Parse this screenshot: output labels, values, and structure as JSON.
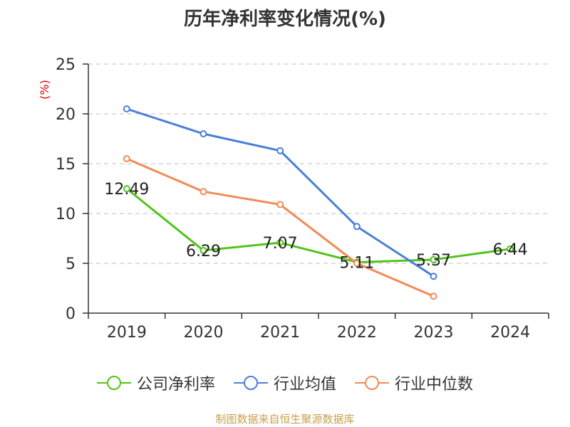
{
  "chart_data": {
    "type": "line",
    "title": "历年净利率变化情况(%)",
    "ylabel": "(%)",
    "xlabel": "",
    "categories": [
      "2019",
      "2020",
      "2021",
      "2022",
      "2023",
      "2024"
    ],
    "ylim": [
      0,
      25
    ],
    "yticks": [
      0,
      5,
      10,
      15,
      20,
      25
    ],
    "grid": "horizontal dashed",
    "legend_position": "bottom",
    "series": [
      {
        "name": "公司净利率",
        "color": "#52c41a",
        "values": [
          12.49,
          6.29,
          7.07,
          5.11,
          5.37,
          6.44
        ],
        "labels": [
          "12.49",
          "6.29",
          "7.07",
          "5.11",
          "5.37",
          "6.44"
        ]
      },
      {
        "name": "行业均值",
        "color": "#4a7fd8",
        "values": [
          20.5,
          18.0,
          16.3,
          8.7,
          3.7,
          null
        ]
      },
      {
        "name": "行业中位数",
        "color": "#f28a55",
        "values": [
          15.5,
          12.2,
          10.9,
          5.0,
          1.7,
          null
        ]
      }
    ]
  },
  "source": "制图数据来自恒生聚源数据库",
  "colors": {
    "axis": "#333333",
    "ylabel": "#e00000",
    "grid": "#cccccc"
  }
}
